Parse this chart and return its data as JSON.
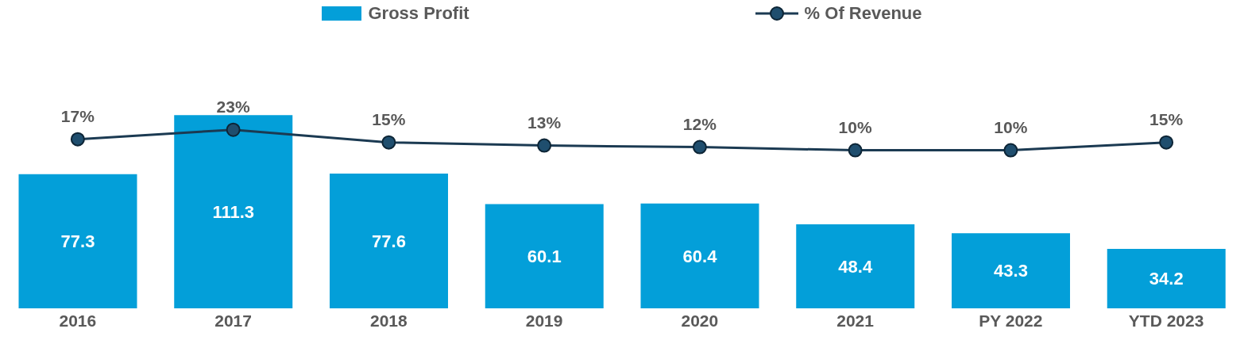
{
  "chart_data": {
    "type": "bar",
    "categories": [
      "2016",
      "2017",
      "2018",
      "2019",
      "2020",
      "2021",
      "PY 2022",
      "YTD 2023"
    ],
    "series": [
      {
        "name": "Gross Profit",
        "color": "#039fd9",
        "values": [
          77.3,
          111.3,
          77.6,
          60.1,
          60.4,
          48.4,
          43.3,
          34.2
        ],
        "value_labels": [
          "77.3",
          "111.3",
          "77.6",
          "60.1",
          "60.4",
          "48.4",
          "43.3",
          "34.2"
        ]
      },
      {
        "name": "% Of Revenue",
        "type": "line",
        "axis": "y2",
        "color": "#1b3a52",
        "marker": "circle",
        "line_style": "solid",
        "values": [
          17,
          23,
          15,
          13,
          12,
          10,
          10,
          15
        ],
        "value_labels": [
          "17%",
          "23%",
          "15%",
          "13%",
          "12%",
          "10%",
          "10%",
          "15%"
        ]
      }
    ],
    "tick_labels": "x",
    "legend": "top"
  }
}
